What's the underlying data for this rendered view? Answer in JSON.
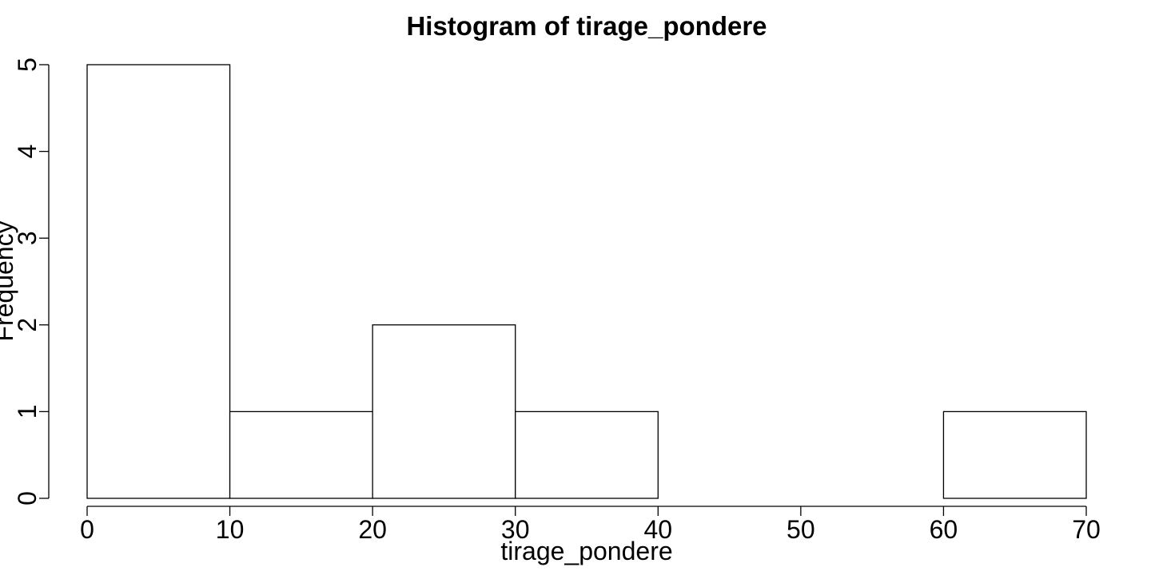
{
  "chart_data": {
    "type": "bar",
    "title": "Histogram of tirage_pondere",
    "xlabel": "tirage_pondere",
    "ylabel": "Frequency",
    "bins": [
      {
        "from": 0,
        "to": 10,
        "count": 5
      },
      {
        "from": 10,
        "to": 20,
        "count": 1
      },
      {
        "from": 20,
        "to": 30,
        "count": 2
      },
      {
        "from": 30,
        "to": 40,
        "count": 1
      },
      {
        "from": 40,
        "to": 50,
        "count": 0
      },
      {
        "from": 50,
        "to": 60,
        "count": 0
      },
      {
        "from": 60,
        "to": 70,
        "count": 1
      }
    ],
    "xlim": [
      0,
      70
    ],
    "ylim": [
      0,
      5
    ],
    "x_ticks": [
      "0",
      "10",
      "20",
      "30",
      "40",
      "50",
      "60",
      "70"
    ],
    "y_ticks": [
      "0",
      "1",
      "2",
      "3",
      "4",
      "5"
    ],
    "grid": false,
    "bar_fill": "#ffffff",
    "bar_stroke": "#000000"
  }
}
